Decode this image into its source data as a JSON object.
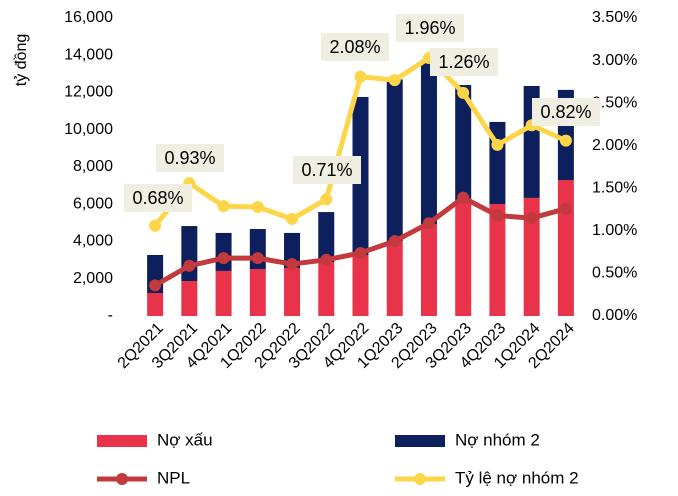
{
  "chart_data": {
    "type": "bar-line",
    "y_label": "tỷ đồng",
    "categories": [
      "2Q2021",
      "3Q2021",
      "4Q2021",
      "1Q2022",
      "2Q2022",
      "3Q2022",
      "4Q2022",
      "1Q2023",
      "2Q2023",
      "3Q2023",
      "4Q2023",
      "1Q2024",
      "2Q2024"
    ],
    "series": [
      {
        "name": "Nợ xấu",
        "type": "bar",
        "color": "#e8334a",
        "values": [
          1235,
          1880,
          2420,
          2520,
          2580,
          2900,
          3275,
          4030,
          4940,
          6230,
          6010,
          6340,
          7300
        ]
      },
      {
        "name": "Nợ nhóm 2",
        "type": "bar",
        "color": "#0d1f5c",
        "values": [
          2040,
          2950,
          2040,
          2150,
          1880,
          2680,
          8485,
          8670,
          8810,
          6170,
          4410,
          6010,
          4840
        ]
      },
      {
        "name": "NPL",
        "type": "line",
        "axis": "y2",
        "color": "#c23a3e",
        "values": [
          0.36,
          0.59,
          0.68,
          0.68,
          0.61,
          0.66,
          0.74,
          0.88,
          1.09,
          1.39,
          1.18,
          1.15,
          1.26
        ]
      },
      {
        "name": "Tỷ lệ nợ nhóm 2",
        "type": "line",
        "axis": "y2",
        "color": "#fcd548",
        "values": [
          1.06,
          1.56,
          1.29,
          1.28,
          1.14,
          1.37,
          2.81,
          2.77,
          3.03,
          2.62,
          2.01,
          2.24,
          2.06
        ]
      }
    ],
    "annotations": [
      "0.68%",
      "0.93%",
      "0.71%",
      "2.08%",
      "1.96%",
      "1.26%",
      "0.82%"
    ],
    "ylim": [
      0,
      16000
    ],
    "yticks": [
      {
        "value": 0,
        "label": "-"
      },
      {
        "value": 2000,
        "label": "2,000"
      },
      {
        "value": 4000,
        "label": "4,000"
      },
      {
        "value": 6000,
        "label": "6,000"
      },
      {
        "value": 8000,
        "label": "8,000"
      },
      {
        "value": 10000,
        "label": "10,000"
      },
      {
        "value": 12000,
        "label": "12,000"
      },
      {
        "value": 14000,
        "label": "14,000"
      },
      {
        "value": 16000,
        "label": "16,000"
      }
    ],
    "y2lim": [
      0,
      3.5
    ],
    "y2ticks": [
      {
        "value": 0,
        "label": "0.00%"
      },
      {
        "value": 0.5,
        "label": "0.50%"
      },
      {
        "value": 1,
        "label": "1.00%"
      },
      {
        "value": 1.5,
        "label": "1.50%"
      },
      {
        "value": 2,
        "label": "2.00%"
      },
      {
        "value": 2.5,
        "label": "2.50%"
      },
      {
        "value": 3,
        "label": "3.00%"
      },
      {
        "value": 3.5,
        "label": "3.50%"
      }
    ]
  }
}
